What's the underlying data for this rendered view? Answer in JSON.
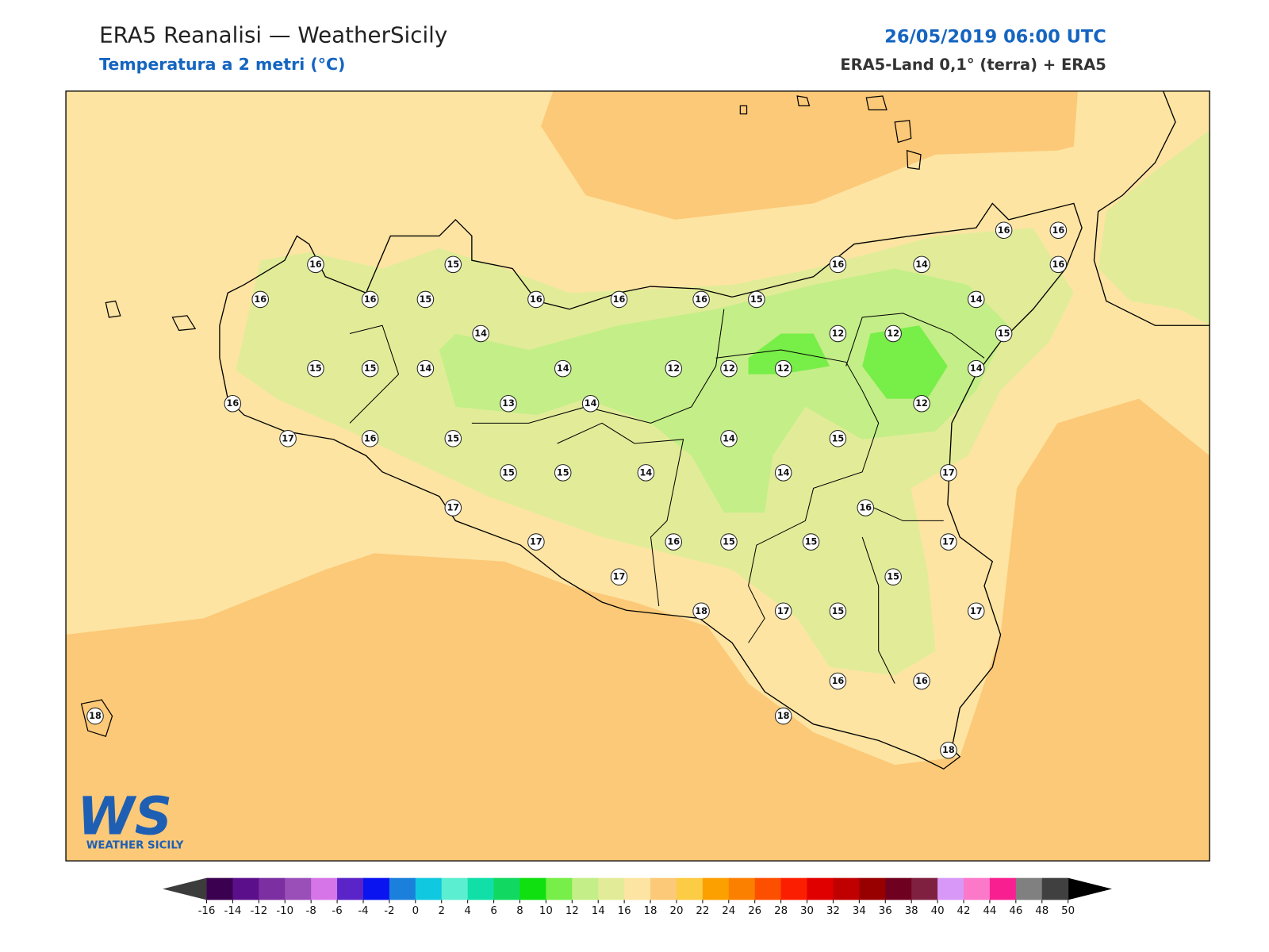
{
  "header": {
    "title": "ERA5 Reanalisi — WeatherSicily",
    "subtitle": "Temperatura a 2 metri (°C)",
    "date": "26/05/2019 06:00 UTC",
    "source": "ERA5-Land 0,1° (terra) + ERA5"
  },
  "stations": [
    16,
    15,
    16,
    16,
    15,
    16,
    16,
    16,
    15,
    16,
    14,
    16,
    16,
    16,
    14,
    14,
    12,
    12,
    15,
    15,
    15,
    14,
    14,
    12,
    12,
    12,
    14,
    16,
    13,
    14,
    12,
    17,
    16,
    15,
    14,
    15,
    15,
    15,
    14,
    14,
    17,
    17,
    16,
    17,
    16,
    15,
    15,
    17,
    17,
    15,
    18,
    17,
    15,
    17,
    16,
    16,
    18,
    18,
    18
  ],
  "colorbar": {
    "ticks": [
      -16,
      -14,
      -12,
      -10,
      -8,
      -6,
      -4,
      -2,
      0,
      2,
      4,
      6,
      8,
      10,
      12,
      14,
      16,
      18,
      20,
      22,
      24,
      26,
      28,
      30,
      32,
      34,
      36,
      38,
      40,
      42,
      44,
      46,
      48,
      50
    ],
    "colors": [
      "#3b0050",
      "#5c0f8a",
      "#7b2fa0",
      "#9a4fb8",
      "#d575e8",
      "#5b24c8",
      "#0a14f0",
      "#1a80dc",
      "#10c8e0",
      "#5ceed0",
      "#10e0a8",
      "#10d860",
      "#10e010",
      "#78ee48",
      "#c4ee88",
      "#e2ec98",
      "#fde4a2",
      "#fcc978",
      "#fccc44",
      "#fca000",
      "#fc8000",
      "#fc5000",
      "#fc1e00",
      "#e00000",
      "#c00000",
      "#980000",
      "#700020",
      "#802040",
      "#d898f8",
      "#fc78c8",
      "#f82090",
      "#808080",
      "#404040"
    ],
    "under": "#3c3c3c",
    "over": "#000000"
  },
  "logo": {
    "mark": "WS",
    "name": "WEATHER SICILY"
  }
}
